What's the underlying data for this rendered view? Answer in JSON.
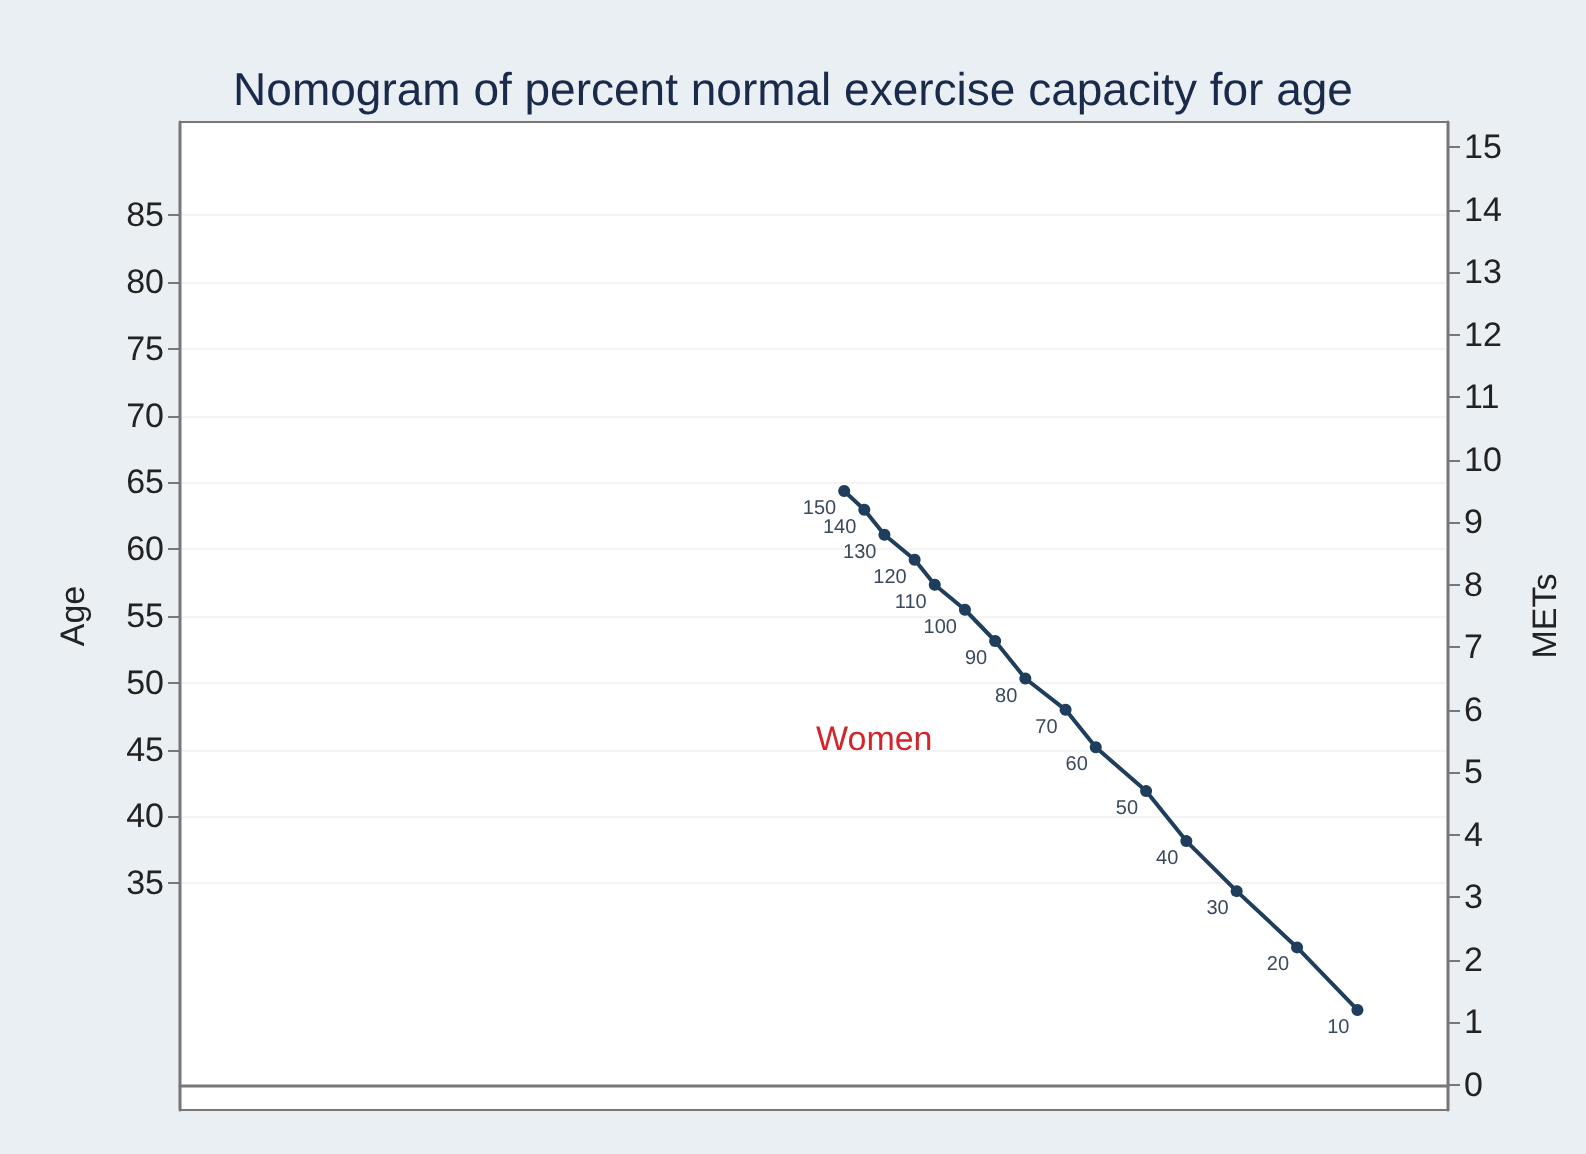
{
  "chart_data": {
    "type": "line",
    "title": "Nomogram of percent normal exercise capacity for age",
    "ylabel": "Age",
    "y2label": "METs",
    "categories": [
      null,
      null,
      null,
      null,
      null,
      null,
      null,
      null,
      null,
      null,
      null,
      null,
      null,
      null,
      null,
      null,
      null,
      null,
      null,
      null,
      null,
      null,
      null,
      null,
      null,
      null,
      null,
      null,
      null,
      null,
      null,
      null,
      null,
      null,
      null,
      null,
      null,
      null,
      null,
      null,
      null,
      null,
      null,
      null,
      null,
      null,
      null,
      null,
      null,
      null,
      null,
      null,
      null,
      null,
      null,
      null,
      null,
      null,
      null,
      null,
      null,
      null,
      null,
      null,
      null,
      null,
      null,
      null,
      null,
      null,
      null,
      null,
      null,
      null,
      null,
      null,
      null,
      null,
      null,
      null,
      null,
      null,
      null,
      null,
      null,
      null,
      null,
      null,
      null,
      null,
      null,
      null,
      null,
      null,
      null,
      null,
      null,
      null,
      null,
      null,
      null,
      null,
      null,
      null,
      null,
      null,
      null,
      null,
      null,
      null,
      null,
      null,
      null,
      null,
      null,
      null,
      null,
      null,
      null,
      null,
      null,
      null,
      null,
      null,
      null,
      null,
      null
    ],
    "series": [
      {
        "color": "#1f3d5c",
        "axis": "y2",
        "values": [
          null,
          null,
          null,
          null,
          null,
          null,
          null,
          null,
          null,
          null,
          null,
          null,
          null,
          null,
          null,
          null,
          null,
          null,
          null,
          null,
          null,
          null,
          null,
          null,
          null,
          null,
          null,
          null,
          null,
          null,
          null,
          null,
          null,
          null,
          null,
          null,
          null,
          null,
          null,
          null,
          null,
          null,
          null,
          null,
          null,
          null,
          null,
          null,
          null,
          null,
          null,
          null,
          null,
          null,
          null,
          null,
          null,
          null,
          null,
          null,
          null,
          null,
          null,
          null,
          null,
          null,
          9.5,
          null,
          9.2,
          null,
          8.8,
          null,
          null,
          8.4,
          null,
          8.0,
          null,
          null,
          7.6,
          null,
          null,
          7.1,
          null,
          null,
          6.5,
          null,
          null,
          null,
          6.0,
          null,
          null,
          5.4,
          null,
          null,
          null,
          null,
          4.7,
          null,
          null,
          null,
          3.9,
          null,
          null,
          null,
          null,
          3.1,
          null,
          null,
          null,
          null,
          null,
          2.2,
          null,
          null,
          null,
          null,
          null,
          1.2,
          null,
          null,
          null,
          null,
          null,
          null,
          null,
          null,
          null
        ]
      }
    ],
    "annotations": [
      "Women",
      "150",
      "140",
      "130",
      "120",
      "110",
      "100",
      "90",
      "80",
      "70",
      "60",
      "50",
      "40",
      "30",
      "20",
      "10"
    ],
    "ylim": [
      18,
      92
    ],
    "yticks": [
      35,
      40,
      45,
      50,
      55,
      60,
      65,
      70,
      75,
      80,
      85
    ],
    "y2lim": [
      -0.4,
      15.4
    ],
    "y2ticks": [
      0,
      1,
      2,
      3,
      4,
      5,
      6,
      7,
      8,
      9,
      10,
      11,
      12,
      13,
      14,
      15
    ],
    "grid": "y",
    "tick_labels": "y",
    "marker": "circle",
    "line_style": "solid"
  }
}
